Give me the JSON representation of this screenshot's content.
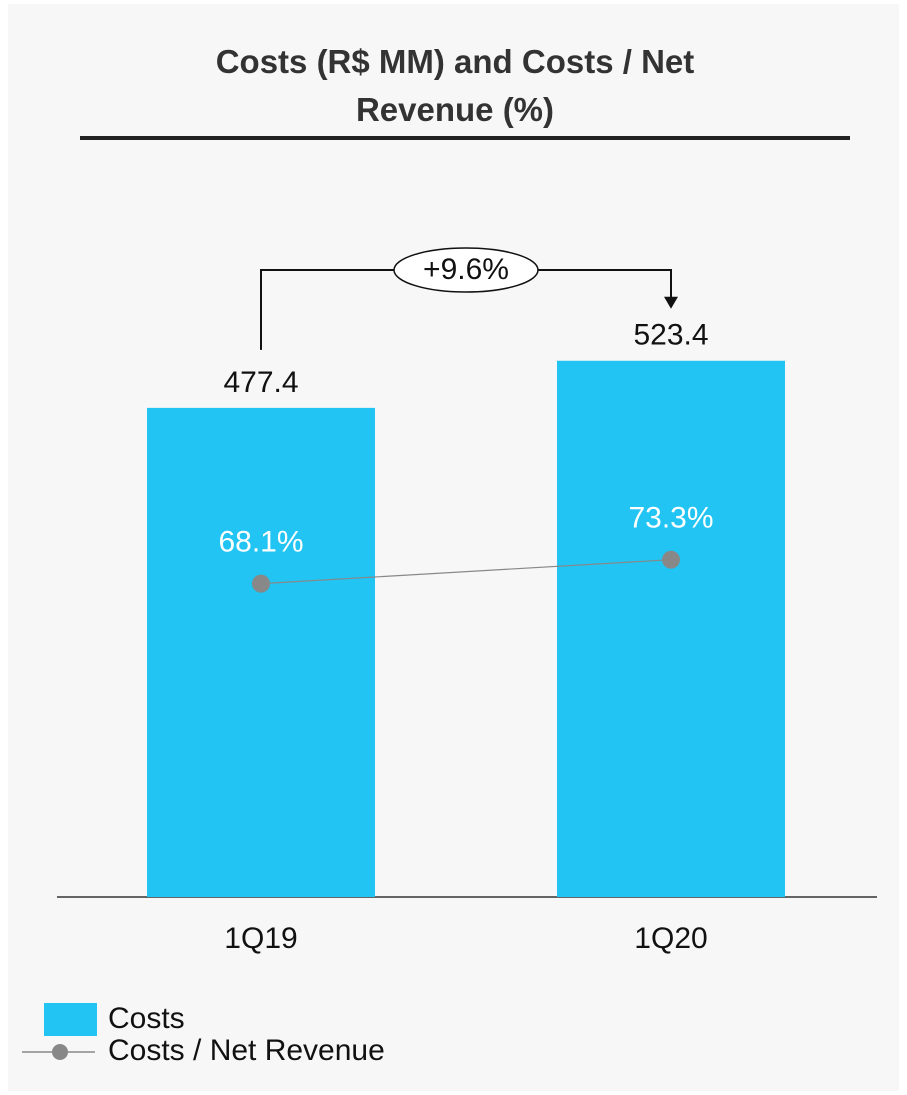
{
  "chart_data": {
    "type": "combo",
    "title": "Costs (R$ MM) and Costs / Net Revenue (%)",
    "categories": [
      "1Q19",
      "1Q20"
    ],
    "series": [
      {
        "name": "Costs",
        "type": "bar",
        "color": "#21c4f2",
        "values": [
          477.4,
          523.4
        ]
      },
      {
        "name": "Costs / Net Revenue",
        "type": "line",
        "axis": "y2",
        "color": "#888888",
        "values": [
          68.1,
          73.3
        ],
        "value_labels": [
          "68.1%",
          "73.3%"
        ]
      }
    ],
    "ylim": [
      0,
      530
    ],
    "y2lim": [
      0,
      118
    ],
    "annotation": "+9.6%"
  }
}
